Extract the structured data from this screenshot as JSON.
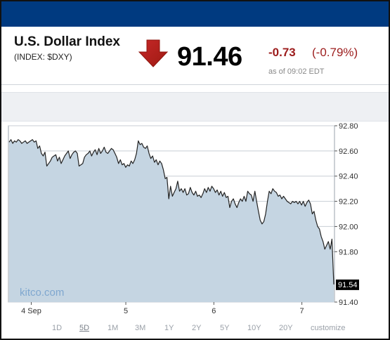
{
  "header": {
    "name": "U.S. Dollar Index",
    "ticker": "(INDEX: $DXY)",
    "price": "91.46",
    "change": "-0.73",
    "change_pct": "(-0.79%)",
    "as_of": "as of 09:02 EDT",
    "direction": "down",
    "down_color": "#c62828"
  },
  "watermark": "kitco.com",
  "last_label": "91.54",
  "ranges": [
    {
      "label": "1D",
      "selected": false
    },
    {
      "label": "5D",
      "selected": true
    },
    {
      "label": "1M",
      "selected": false
    },
    {
      "label": "3M",
      "selected": false
    },
    {
      "label": "1Y",
      "selected": false
    },
    {
      "label": "2Y",
      "selected": false
    },
    {
      "label": "5Y",
      "selected": false
    },
    {
      "label": "10Y",
      "selected": false
    },
    {
      "label": "20Y",
      "selected": false
    },
    {
      "label": "customize",
      "selected": false
    }
  ],
  "chart_data": {
    "type": "area",
    "title": "",
    "xlabel": "",
    "ylabel": "",
    "ylim": [
      91.4,
      92.8
    ],
    "y_ticks": [
      "92.80",
      "92.60",
      "92.40",
      "92.20",
      "92.00",
      "91.80",
      "91.40"
    ],
    "x_ticks": [
      {
        "label": "4 Sep",
        "pos": 0.07
      },
      {
        "label": "5",
        "pos": 0.36
      },
      {
        "label": "6",
        "pos": 0.63
      },
      {
        "label": "7",
        "pos": 0.9
      }
    ],
    "grid": "horizontal",
    "fill_color": "#c5d5e2",
    "line_color": "#222222",
    "series": [
      {
        "values": [
          92.67,
          92.69,
          92.66,
          92.68,
          92.67,
          92.69,
          92.68,
          92.66,
          92.67,
          92.68,
          92.66,
          92.67,
          92.68,
          92.69,
          92.67,
          92.68,
          92.62,
          92.64,
          92.58,
          92.56,
          92.59,
          92.48,
          92.5,
          92.52,
          92.55,
          92.56,
          92.57,
          92.52,
          92.55,
          92.5,
          92.53,
          92.56,
          92.58,
          92.6,
          92.54,
          92.57,
          92.59,
          92.6,
          92.58,
          92.48,
          92.49,
          92.5,
          92.55,
          92.57,
          92.58,
          92.6,
          92.56,
          92.59,
          92.61,
          92.57,
          92.62,
          92.58,
          92.6,
          92.63,
          92.59,
          92.58,
          92.6,
          92.62,
          92.61,
          92.58,
          92.55,
          92.5,
          92.53,
          92.49,
          92.5,
          92.47,
          92.49,
          92.48,
          92.52,
          92.5,
          92.53,
          92.58,
          92.68,
          92.65,
          92.66,
          92.63,
          92.62,
          92.64,
          92.58,
          92.54,
          92.56,
          92.51,
          92.53,
          92.49,
          92.52,
          92.5,
          92.45,
          92.38,
          92.39,
          92.22,
          92.32,
          92.24,
          92.27,
          92.3,
          92.36,
          92.28,
          92.3,
          92.27,
          92.3,
          92.25,
          92.26,
          92.31,
          92.27,
          92.25,
          92.28,
          92.24,
          92.25,
          92.23,
          92.26,
          92.3,
          92.27,
          92.31,
          92.28,
          92.32,
          92.3,
          92.27,
          92.29,
          92.25,
          92.28,
          92.24,
          92.27,
          92.23,
          92.24,
          92.15,
          92.2,
          92.22,
          92.18,
          92.15,
          92.19,
          92.22,
          92.2,
          92.24,
          92.2,
          92.28,
          92.26,
          92.25,
          92.2,
          92.28,
          92.2,
          92.12,
          92.05,
          92.02,
          92.04,
          92.1,
          92.2,
          92.28,
          92.26,
          92.3,
          92.28,
          92.27,
          92.24,
          92.25,
          92.22,
          92.24,
          92.22,
          92.2,
          92.19,
          92.18,
          92.2,
          92.19,
          92.2,
          92.18,
          92.2,
          92.17,
          92.2,
          92.16,
          92.19,
          92.21,
          92.18,
          92.1,
          92.12,
          92.05,
          92.0,
          91.98,
          91.92,
          91.88,
          91.82,
          91.85,
          91.88,
          91.82,
          91.9,
          91.54
        ]
      }
    ]
  }
}
